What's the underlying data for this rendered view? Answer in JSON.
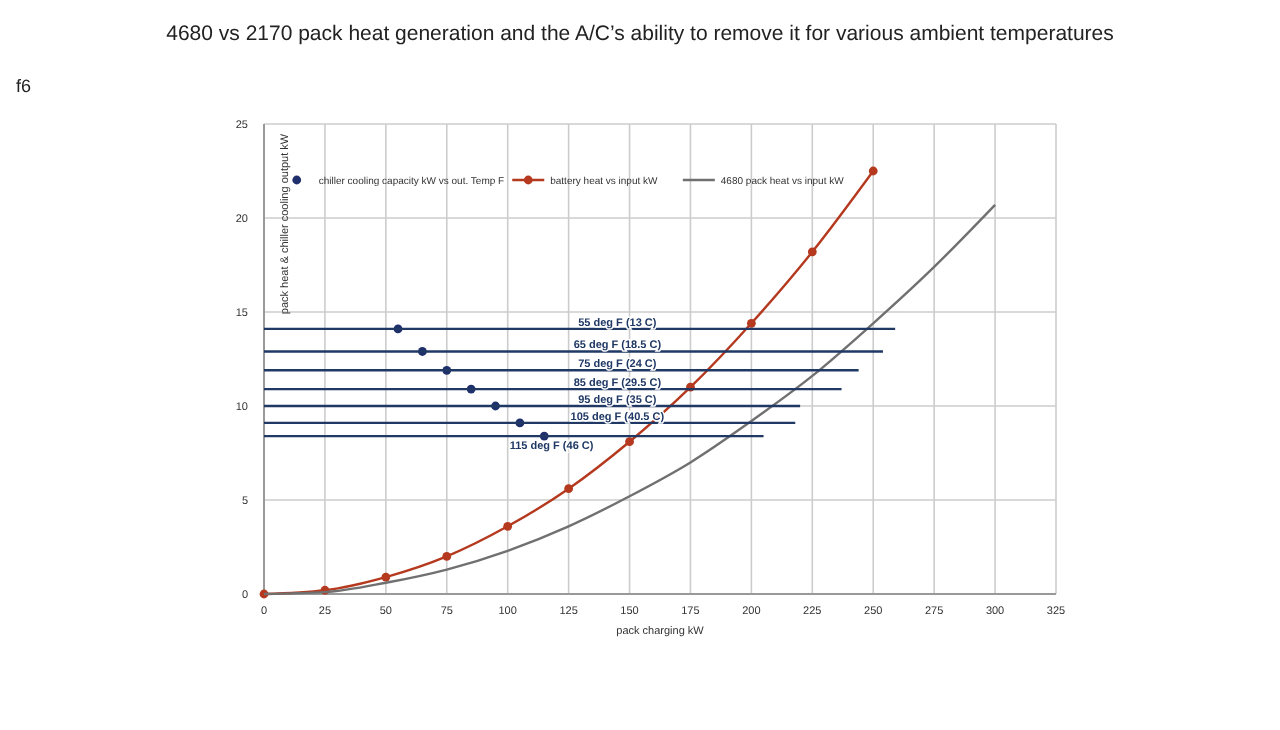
{
  "chart_data": {
    "type": "line",
    "title": "4680 vs 2170 pack heat generation and the A/C’s ability to remove it for various ambient temperatures",
    "annotations": [
      "f6"
    ],
    "xlabel": "pack charging kW",
    "ylabel": "pack heat & chiller cooling output kW",
    "xlim": [
      0,
      325
    ],
    "xticks": [
      0,
      25,
      50,
      75,
      100,
      125,
      150,
      175,
      200,
      225,
      250,
      275,
      300,
      325
    ],
    "ylim": [
      0,
      25
    ],
    "yticks": [
      0,
      5,
      10,
      15,
      20,
      25
    ],
    "grid": true,
    "legend": "top",
    "series": [
      {
        "name": "chiller cooling capacity kW vs out. Temp F",
        "type": "scatter",
        "marker": "circle",
        "color": "#1f2f6b",
        "x": [
          55,
          65,
          75,
          85,
          95,
          105,
          115
        ],
        "values": [
          14.1,
          12.9,
          11.9,
          10.9,
          10.0,
          9.1,
          8.4
        ]
      },
      {
        "name": "battery heat vs input kW",
        "type": "line",
        "marker": "circle",
        "color": "#b5391e",
        "x": [
          0,
          25,
          50,
          75,
          100,
          125,
          150,
          175,
          200,
          225,
          250
        ],
        "values": [
          0,
          0.2,
          0.9,
          2.0,
          3.6,
          5.6,
          8.1,
          11.0,
          14.4,
          18.2,
          22.5
        ]
      },
      {
        "name": "4680 pack heat vs input kW",
        "type": "line",
        "marker": "none",
        "color": "#707070",
        "x": [
          0,
          25,
          50,
          75,
          100,
          125,
          150,
          175,
          200,
          225,
          250,
          275,
          300
        ],
        "values": [
          0,
          0.1,
          0.6,
          1.3,
          2.3,
          3.6,
          5.2,
          7.0,
          9.2,
          11.6,
          14.4,
          17.4,
          20.7
        ]
      },
      {
        "name": "55 deg F (13 C)",
        "type": "line",
        "marker": "none",
        "color": "#1f3864",
        "x": [
          0,
          259
        ],
        "values": [
          14.1,
          14.1
        ]
      },
      {
        "name": "65 deg F (18.5 C)",
        "type": "line",
        "marker": "none",
        "color": "#1f3864",
        "x": [
          0,
          254
        ],
        "values": [
          12.9,
          12.9
        ]
      },
      {
        "name": "75 deg F (24 C)",
        "type": "line",
        "marker": "none",
        "color": "#1f3864",
        "x": [
          0,
          244
        ],
        "values": [
          11.9,
          11.9
        ]
      },
      {
        "name": "85 deg F (29.5 C)",
        "type": "line",
        "marker": "none",
        "color": "#1f3864",
        "x": [
          0,
          237
        ],
        "values": [
          10.9,
          10.9
        ]
      },
      {
        "name": "95 deg F (35 C)",
        "type": "line",
        "marker": "none",
        "color": "#1f3864",
        "x": [
          0,
          220
        ],
        "values": [
          10.0,
          10.0
        ]
      },
      {
        "name": "105 deg F (40.5 C)",
        "type": "line",
        "marker": "none",
        "color": "#1f3864",
        "x": [
          0,
          218
        ],
        "values": [
          9.1,
          9.1
        ]
      },
      {
        "name": "115 deg F (46 C)",
        "type": "line",
        "marker": "none",
        "color": "#1f3864",
        "x": [
          0,
          205
        ],
        "values": [
          8.4,
          8.4
        ]
      }
    ]
  }
}
